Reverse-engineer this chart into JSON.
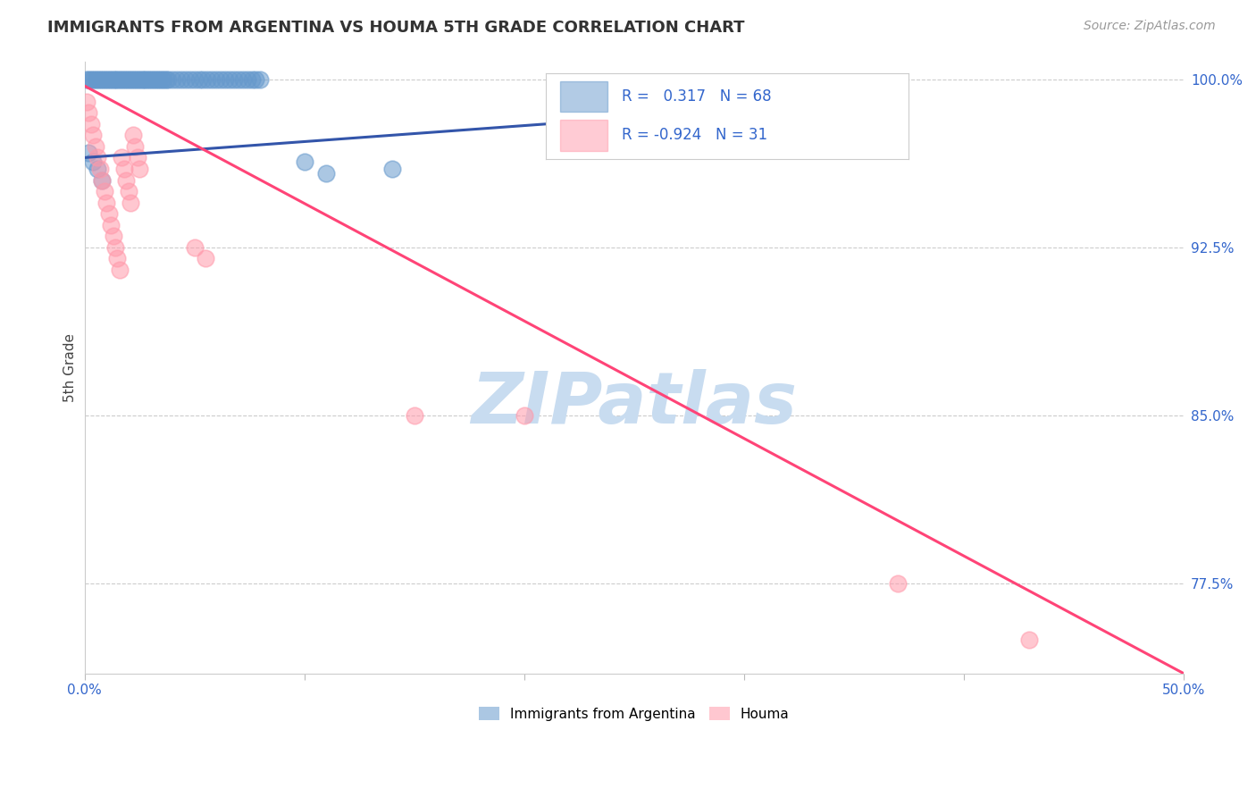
{
  "title": "IMMIGRANTS FROM ARGENTINA VS HOUMA 5TH GRADE CORRELATION CHART",
  "source": "Source: ZipAtlas.com",
  "ylabel": "5th Grade",
  "xlim": [
    0.0,
    0.5
  ],
  "ylim": [
    0.735,
    1.008
  ],
  "ytick_positions": [
    0.775,
    0.85,
    0.925,
    1.0
  ],
  "ytick_labels": [
    "77.5%",
    "85.0%",
    "92.5%",
    "100.0%"
  ],
  "blue_color": "#6699CC",
  "pink_color": "#FF99AA",
  "blue_line_color": "#3355AA",
  "pink_line_color": "#FF4477",
  "watermark": "ZIPatlas",
  "watermark_color": "#C8DCF0",
  "legend_label_blue": "Immigrants from Argentina",
  "legend_label_pink": "Houma",
  "blue_x": [
    0.001,
    0.002,
    0.003,
    0.004,
    0.005,
    0.006,
    0.007,
    0.008,
    0.009,
    0.01,
    0.011,
    0.012,
    0.013,
    0.014,
    0.015,
    0.016,
    0.017,
    0.018,
    0.019,
    0.02,
    0.021,
    0.022,
    0.023,
    0.024,
    0.025,
    0.026,
    0.027,
    0.028,
    0.029,
    0.03,
    0.031,
    0.032,
    0.033,
    0.034,
    0.035,
    0.036,
    0.037,
    0.038,
    0.04,
    0.042,
    0.044,
    0.046,
    0.048,
    0.05,
    0.052,
    0.054,
    0.056,
    0.058,
    0.06,
    0.062,
    0.064,
    0.066,
    0.068,
    0.07,
    0.072,
    0.074,
    0.076,
    0.078,
    0.08,
    0.002,
    0.004,
    0.006,
    0.008,
    0.1,
    0.11,
    0.14,
    0.28
  ],
  "blue_y": [
    1.0,
    1.0,
    1.0,
    1.0,
    1.0,
    1.0,
    1.0,
    1.0,
    1.0,
    1.0,
    1.0,
    1.0,
    1.0,
    1.0,
    1.0,
    1.0,
    1.0,
    1.0,
    1.0,
    1.0,
    1.0,
    1.0,
    1.0,
    1.0,
    1.0,
    1.0,
    1.0,
    1.0,
    1.0,
    1.0,
    1.0,
    1.0,
    1.0,
    1.0,
    1.0,
    1.0,
    1.0,
    1.0,
    1.0,
    1.0,
    1.0,
    1.0,
    1.0,
    1.0,
    1.0,
    1.0,
    1.0,
    1.0,
    1.0,
    1.0,
    1.0,
    1.0,
    1.0,
    1.0,
    1.0,
    1.0,
    1.0,
    1.0,
    1.0,
    0.967,
    0.963,
    0.96,
    0.955,
    0.963,
    0.958,
    0.96,
    0.983
  ],
  "pink_x": [
    0.001,
    0.002,
    0.003,
    0.004,
    0.005,
    0.006,
    0.007,
    0.008,
    0.009,
    0.01,
    0.011,
    0.012,
    0.013,
    0.014,
    0.015,
    0.016,
    0.017,
    0.018,
    0.019,
    0.02,
    0.021,
    0.022,
    0.023,
    0.024,
    0.025,
    0.05,
    0.055,
    0.15,
    0.2,
    0.37,
    0.43
  ],
  "pink_y": [
    0.99,
    0.985,
    0.98,
    0.975,
    0.97,
    0.965,
    0.96,
    0.955,
    0.95,
    0.945,
    0.94,
    0.935,
    0.93,
    0.925,
    0.92,
    0.915,
    0.965,
    0.96,
    0.955,
    0.95,
    0.945,
    0.975,
    0.97,
    0.965,
    0.96,
    0.925,
    0.92,
    0.85,
    0.85,
    0.775,
    0.75
  ],
  "blue_trend_x": [
    0.0,
    0.28
  ],
  "blue_trend_y": [
    0.965,
    0.985
  ],
  "pink_trend_x": [
    0.0,
    0.5
  ],
  "pink_trend_y": [
    0.997,
    0.735
  ]
}
